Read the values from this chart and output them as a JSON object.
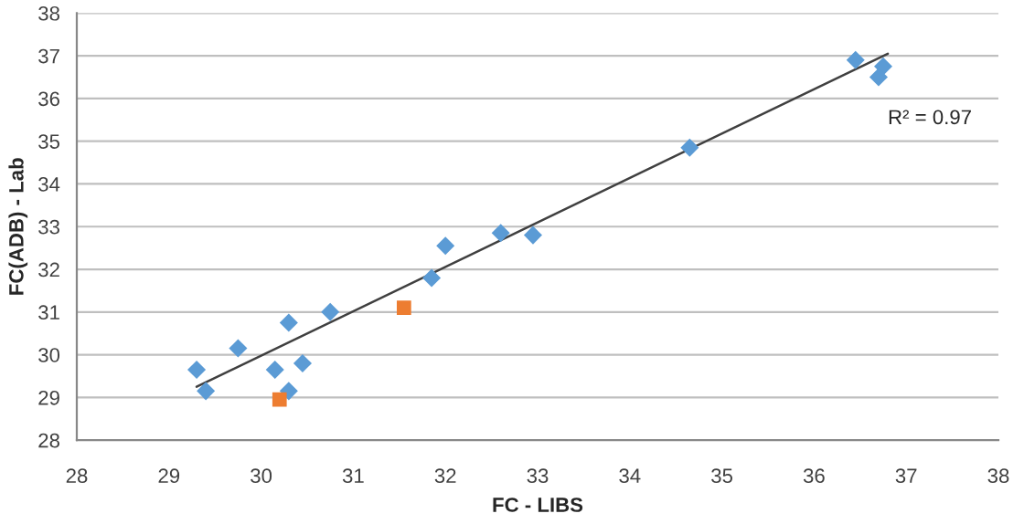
{
  "chart_data": {
    "type": "scatter",
    "xlabel": "FC - LIBS",
    "ylabel": "FC(ADB) - Lab",
    "xlim": [
      28,
      38
    ],
    "xticks": [
      28,
      29,
      30,
      31,
      32,
      33,
      34,
      35,
      36,
      37,
      38
    ],
    "ylim": [
      28,
      38
    ],
    "yticks": [
      28,
      29,
      30,
      31,
      32,
      33,
      34,
      35,
      36,
      37,
      38
    ],
    "grid": "y",
    "legend": false,
    "annotations": [
      "R² = 0.97"
    ],
    "series": [
      {
        "marker": "diamond",
        "color": "#5b9bd5",
        "x": [
          29.3,
          29.4,
          29.75,
          30.15,
          30.3,
          30.3,
          30.45,
          30.75,
          31.85,
          32.0,
          32.6,
          32.95,
          34.65,
          36.45,
          36.75,
          36.7
        ],
        "values": [
          29.65,
          29.15,
          30.15,
          29.65,
          30.75,
          29.15,
          29.8,
          31.0,
          31.8,
          32.55,
          32.85,
          32.8,
          34.85,
          36.9,
          36.75,
          36.5
        ]
      },
      {
        "marker": "square",
        "color": "#ed7d31",
        "x": [
          30.2,
          31.55
        ],
        "values": [
          28.95,
          31.1
        ]
      },
      {
        "type": "line",
        "marker": "none",
        "line_style": "solid",
        "color": "#404040",
        "x": [
          29.3,
          36.8
        ],
        "values": [
          29.25,
          37.05
        ]
      }
    ]
  }
}
